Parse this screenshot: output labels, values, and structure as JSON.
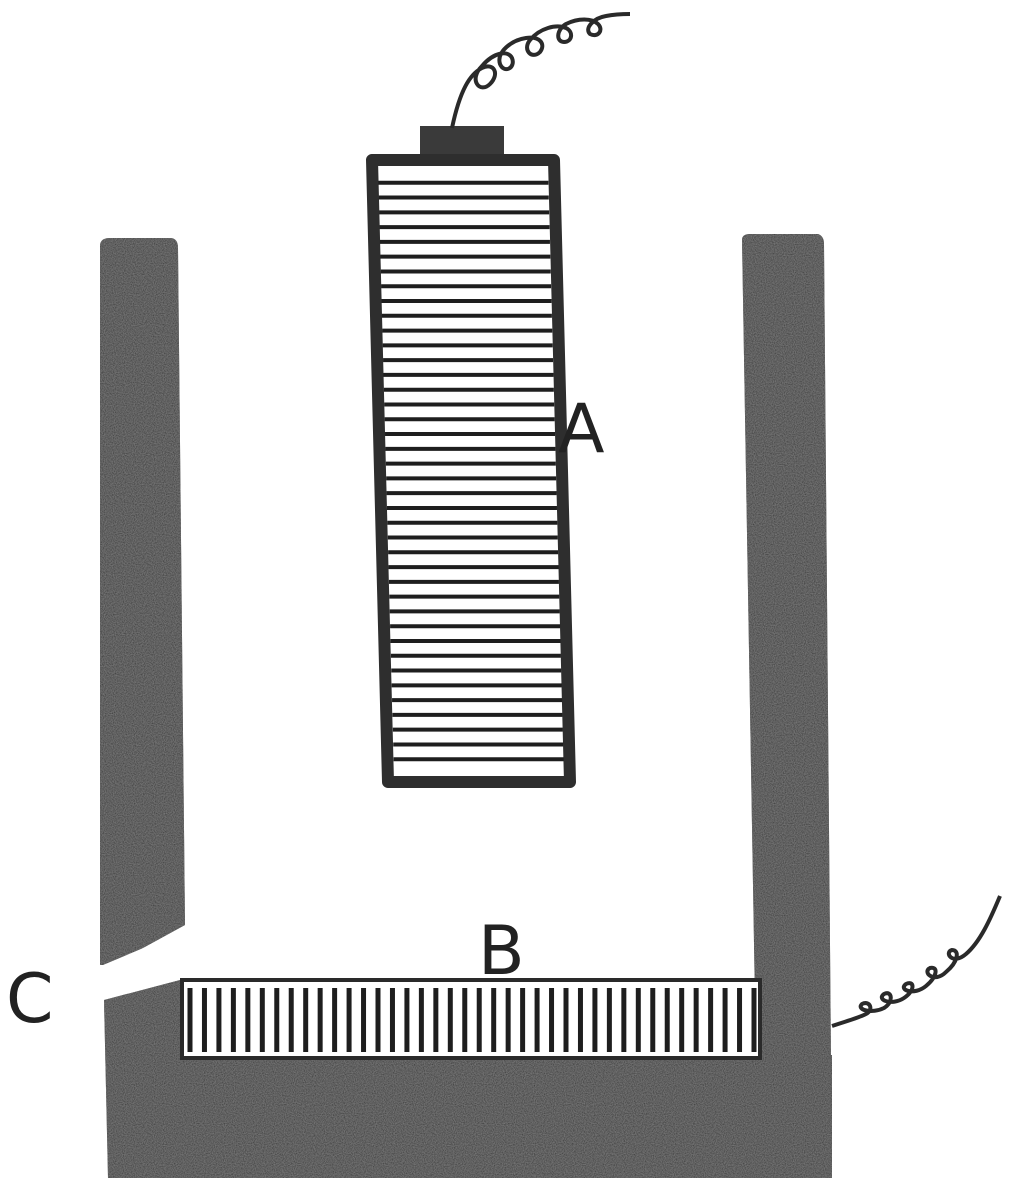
{
  "diagram": {
    "labels": {
      "a": "A",
      "b": "B",
      "c": "C"
    },
    "colors": {
      "ink": "#2e2e2e",
      "paper": "#ffffff",
      "line": "#1e1e1e"
    }
  }
}
